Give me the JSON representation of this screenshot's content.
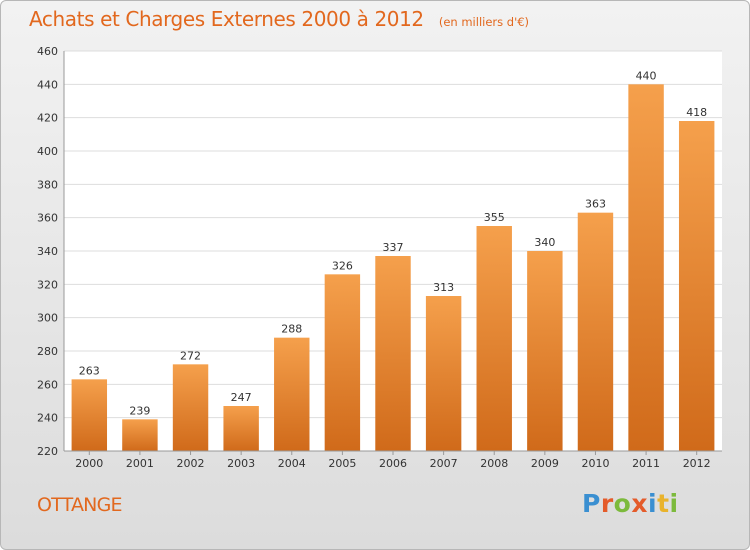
{
  "header": {
    "title": "Achats et Charges Externes 2000 à 2012",
    "subtitle": "(en milliers d'€)"
  },
  "footer": {
    "commune": "OTTANGE",
    "logo": {
      "text": "Proxiti",
      "letter_colors": [
        "#3a8fd1",
        "#e45b2a",
        "#7cba3c",
        "#e45b2a",
        "#3a8fd1",
        "#e9b32c",
        "#7cba3c"
      ]
    }
  },
  "chart_data": {
    "type": "bar",
    "categories": [
      "2000",
      "2001",
      "2002",
      "2003",
      "2004",
      "2005",
      "2006",
      "2007",
      "2008",
      "2009",
      "2010",
      "2011",
      "2012"
    ],
    "values": [
      263,
      239,
      272,
      247,
      288,
      326,
      337,
      313,
      355,
      340,
      363,
      440,
      418
    ],
    "ylim": [
      220,
      460
    ],
    "yticks": [
      220,
      240,
      260,
      280,
      300,
      320,
      340,
      360,
      380,
      400,
      420,
      440,
      460
    ],
    "grid": true,
    "bar_color_top": "#f5a04c",
    "bar_color_bottom": "#d06a1a"
  }
}
